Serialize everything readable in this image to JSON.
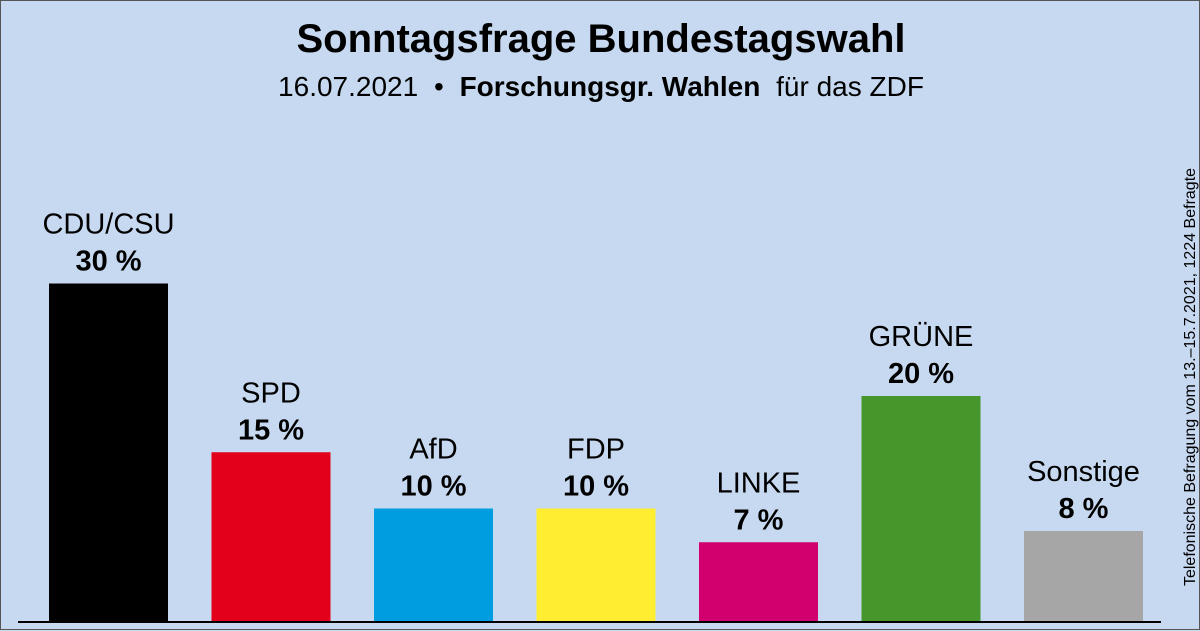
{
  "chart_data": {
    "type": "bar",
    "title": "Sonntagsfrage Bundestagswahl",
    "subtitle_date": "16.07.2021",
    "subtitle_separator": "•",
    "subtitle_institute": "Forschungsgr. Wahlen",
    "subtitle_suffix": "für das ZDF",
    "side_note": "Telefonische Befragung vom 13.–15.7.2021, 1224 Befragte",
    "categories": [
      "CDU/CSU",
      "SPD",
      "AfD",
      "FDP",
      "LINKE",
      "GRÜNE",
      "Sonstige"
    ],
    "values": [
      30,
      15,
      10,
      10,
      7,
      20,
      8
    ],
    "value_labels": [
      "30 %",
      "15 %",
      "10 %",
      "10 %",
      "7 %",
      "20 %",
      "8 %"
    ],
    "colors": [
      "#000000",
      "#e2001a",
      "#009ee0",
      "#ffed32",
      "#d1006e",
      "#46962b",
      "#a6a6a6"
    ],
    "background": "#c7d9f0",
    "grid": false,
    "legend": "none"
  }
}
